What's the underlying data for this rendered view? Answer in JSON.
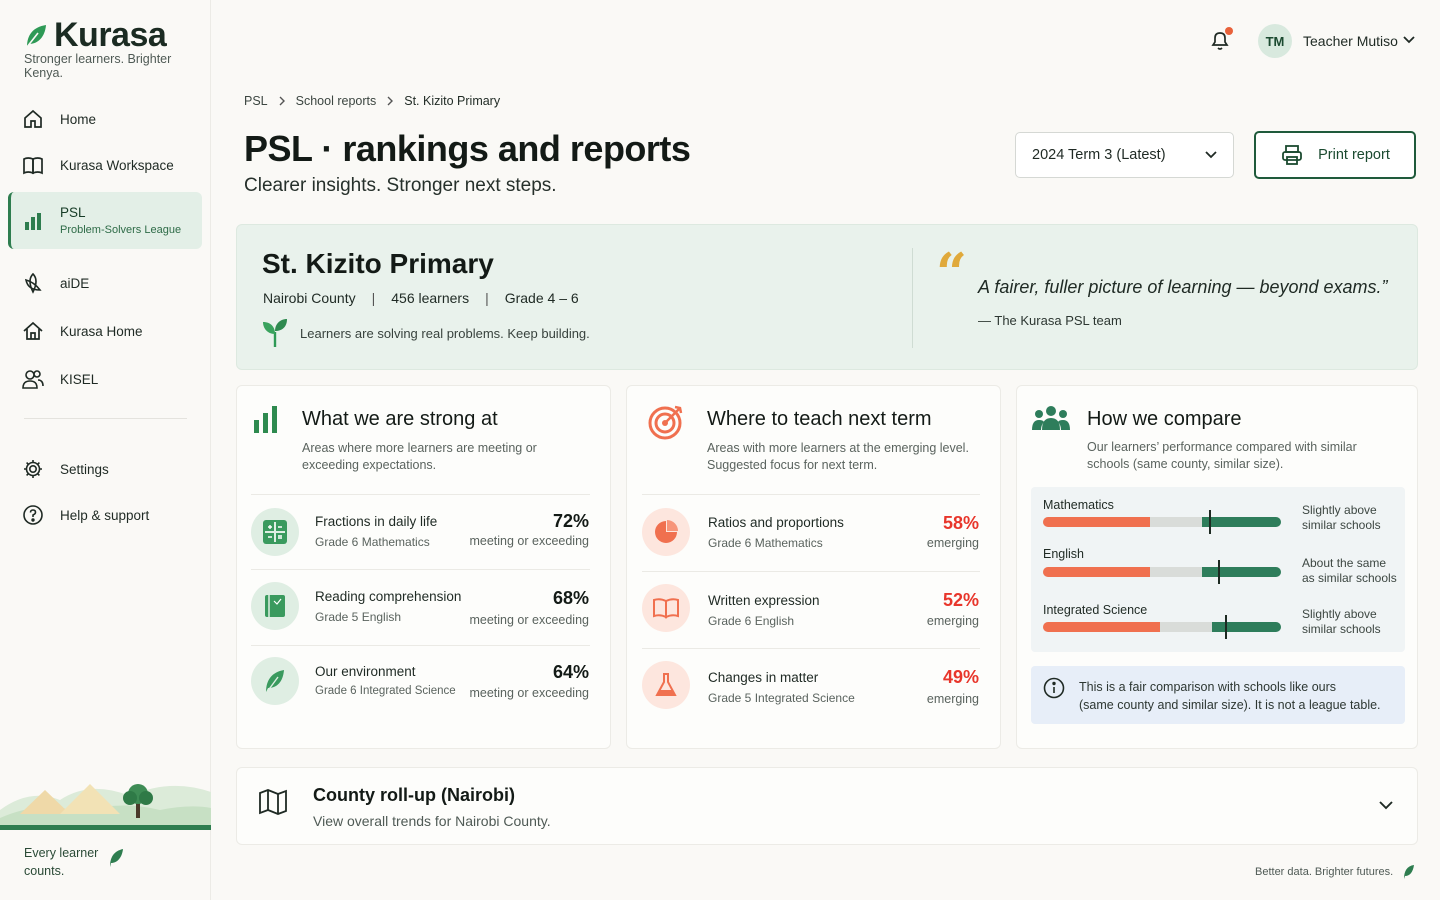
{
  "brand": {
    "name": "Kurasa",
    "tagline": "Stronger learners. Brighter Kenya."
  },
  "sidebar": {
    "items": [
      {
        "label": "Home",
        "icon": "home-icon"
      },
      {
        "label": "Kurasa Workspace",
        "icon": "book-icon"
      },
      {
        "label": "PSL",
        "sublabel": "Problem-Solvers League",
        "icon": "bar-chart-icon",
        "active": true
      },
      {
        "label": "aiDE",
        "icon": "ai-icon"
      },
      {
        "label": "Kurasa Home",
        "icon": "house-icon"
      },
      {
        "label": "KISEL",
        "icon": "users-icon"
      },
      {
        "label": "Settings",
        "icon": "gear-icon"
      },
      {
        "label": "Help & support",
        "icon": "help-icon"
      }
    ],
    "footer_line1": "Every learner",
    "footer_line2": "counts."
  },
  "header": {
    "user_initials": "TM",
    "user_name": "Teacher Mutiso",
    "has_notification": true
  },
  "breadcrumb": [
    "PSL",
    "School reports",
    "St. Kizito Primary"
  ],
  "page": {
    "title": "PSL · rankings and reports",
    "subtitle": "Clearer insights. Stronger next steps.",
    "term_selected": "2024 Term 3 (Latest)",
    "print_label": "Print report"
  },
  "school": {
    "name": "St. Kizito Primary",
    "county": "Nairobi County",
    "learners": "456 learners",
    "grades": "Grade 4 – 6",
    "message": "Learners are solving real problems. Keep building.",
    "quote": "A fairer, fuller picture of learning — beyond exams.”",
    "quote_by": "—  The Kurasa PSL team"
  },
  "strong": {
    "title": "What we are strong at",
    "desc1": "Areas where more learners are meeting or",
    "desc2": "exceeding expectations.",
    "rows": [
      {
        "title": "Fractions in daily life",
        "sub": "Grade 6 Mathematics",
        "pct": "72%",
        "note": "meeting or exceeding"
      },
      {
        "title": "Reading comprehension",
        "sub": "Grade 5 English",
        "pct": "68%",
        "note": "meeting or exceeding"
      },
      {
        "title": "Our environment",
        "sub": "Grade 6 Integrated Science",
        "pct": "64%",
        "note": "meeting or exceeding"
      }
    ]
  },
  "teach": {
    "title": "Where to teach next term",
    "desc1": "Areas with more learners at the emerging level.",
    "desc2": "Suggested focus for next term.",
    "rows": [
      {
        "title": "Ratios and proportions",
        "sub": "Grade 6 Mathematics",
        "pct": "58%",
        "note": "emerging"
      },
      {
        "title": "Written expression",
        "sub": "Grade 6 English",
        "pct": "52%",
        "note": "emerging"
      },
      {
        "title": "Changes in matter",
        "sub": "Grade 5 Integrated Science",
        "pct": "49%",
        "note": "emerging"
      }
    ]
  },
  "compare": {
    "title": "How we compare",
    "desc1": "Our learners’ performance compared with similar",
    "desc2": "schools (same county, similar size).",
    "subjects": [
      {
        "label": "Mathematics",
        "note1": "Slightly above",
        "note2": "similar schools",
        "emerging": 0.45,
        "developing": 0.22,
        "meeting": 0.33,
        "school_marker": 0.7
      },
      {
        "label": "English",
        "note1": "About the same",
        "note2": "as similar schools",
        "emerging": 0.45,
        "developing": 0.22,
        "meeting": 0.33,
        "school_marker": 0.74
      },
      {
        "label": "Integrated Science",
        "note1": "Slightly above",
        "note2": "similar schools",
        "emerging": 0.49,
        "developing": 0.22,
        "meeting": 0.29,
        "school_marker": 0.77
      }
    ],
    "info1": "This is a fair comparison with schools like ours",
    "info2": "(same county and similar size). It is not a league table."
  },
  "county": {
    "title": "County roll-up (Nairobi)",
    "subtitle": "View overall trends for Nairobi County."
  },
  "footer_note": "Better data. Brighter futures.",
  "colors": {
    "brand_green": "#2e7d4f",
    "accent_red": "#e8362b",
    "emerging_orange": "#f0704f",
    "meeting_green": "#2e7d5b",
    "quote_gold": "#e0a93b"
  }
}
